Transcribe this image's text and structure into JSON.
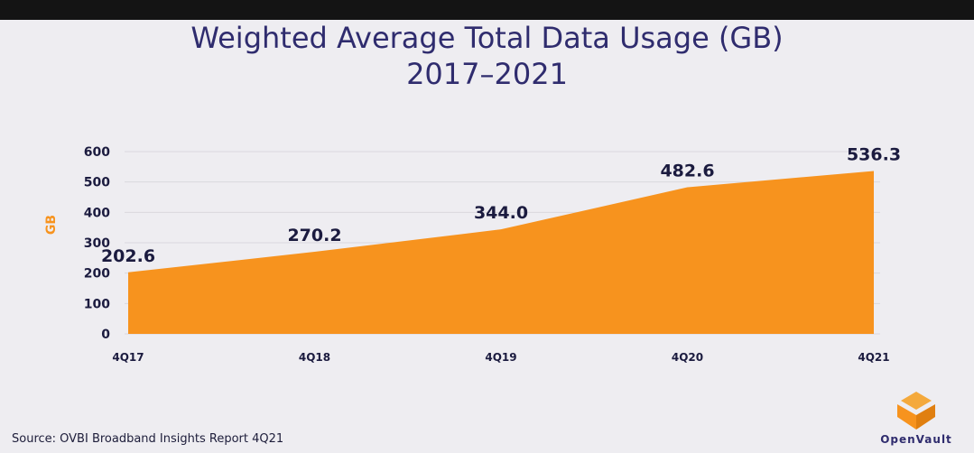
{
  "chart_data": {
    "type": "area",
    "title": "Weighted Average Total Data Usage (GB)",
    "subtitle": "2017–2021",
    "ylabel": "GB",
    "xlabel": "",
    "categories": [
      "4Q17",
      "4Q18",
      "4Q19",
      "4Q20",
      "4Q21"
    ],
    "series": [
      {
        "values": [
          202.6,
          270.2,
          344.0,
          482.6,
          536.3
        ],
        "labels": [
          "202.6",
          "270.2",
          "344.0",
          "482.6",
          "536.3"
        ]
      }
    ],
    "ylim": [
      0,
      600
    ],
    "yticks": [
      0,
      100,
      200,
      300,
      400,
      500,
      600
    ],
    "grid": true,
    "legend": "none",
    "color": "#f7931e"
  },
  "source": "Source: OVBI Broadband Insights Report 4Q21",
  "logo": {
    "text": "OpenVault",
    "icon": "openvault-logo-icon",
    "colors": [
      "#f7931e",
      "#f4a93c"
    ]
  }
}
